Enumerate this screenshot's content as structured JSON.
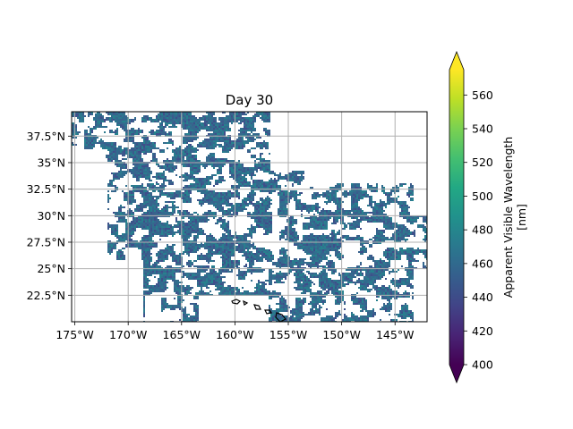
{
  "figure": {
    "title": "Day 30"
  },
  "map": {
    "extent": {
      "lon": [
        -175.3,
        -142.0
      ],
      "lat": [
        20.0,
        39.8
      ]
    },
    "x_ticks": [
      {
        "value": -175,
        "label": "175°W"
      },
      {
        "value": -170,
        "label": "170°W"
      },
      {
        "value": -165,
        "label": "165°W"
      },
      {
        "value": -160,
        "label": "160°W"
      },
      {
        "value": -155,
        "label": "155°W"
      },
      {
        "value": -150,
        "label": "150°W"
      },
      {
        "value": -145,
        "label": "145°W"
      }
    ],
    "y_ticks": [
      {
        "value": 22.5,
        "label": "22.5°N"
      },
      {
        "value": 25,
        "label": "25°N"
      },
      {
        "value": 27.5,
        "label": "27.5°N"
      },
      {
        "value": 30,
        "label": "30°N"
      },
      {
        "value": 32.5,
        "label": "32.5°N"
      },
      {
        "value": 35,
        "label": "35°N"
      },
      {
        "value": 37.5,
        "label": "37.5°N"
      }
    ],
    "gridlines": true,
    "coastlines": "Hawaiian Islands",
    "field_color_range_nm": [
      450,
      485
    ]
  },
  "colorbar": {
    "label": "Apparent Visible Wavelength\n[nm]",
    "label_line1": "Apparent Visible Wavelength",
    "label_line2": "[nm]",
    "colormap": "viridis",
    "range": [
      400,
      575
    ],
    "extend": "both",
    "ticks": [
      {
        "value": 400,
        "label": "400"
      },
      {
        "value": 420,
        "label": "420"
      },
      {
        "value": 440,
        "label": "440"
      },
      {
        "value": 460,
        "label": "460"
      },
      {
        "value": 480,
        "label": "480"
      },
      {
        "value": 500,
        "label": "500"
      },
      {
        "value": 520,
        "label": "520"
      },
      {
        "value": 540,
        "label": "540"
      },
      {
        "value": 560,
        "label": "560"
      }
    ]
  }
}
